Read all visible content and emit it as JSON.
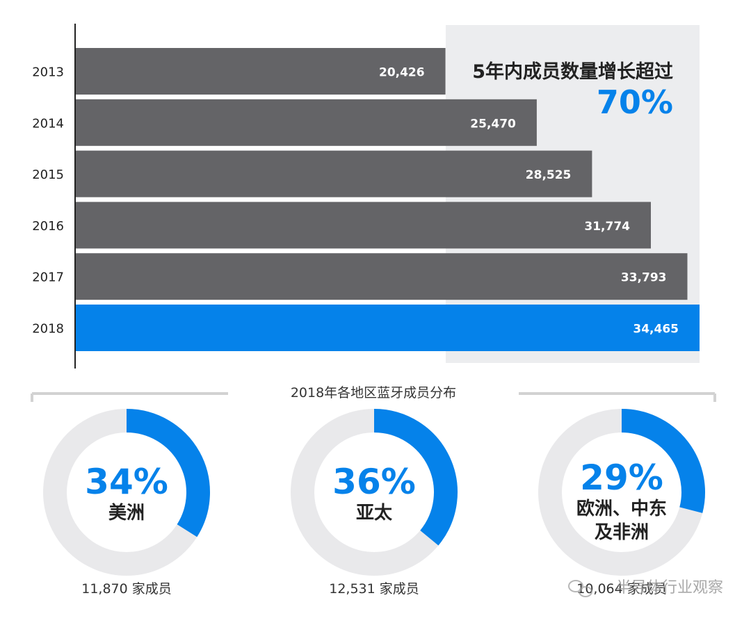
{
  "chart_data": [
    {
      "type": "bar",
      "orientation": "horizontal",
      "categories": [
        "2013",
        "2014",
        "2015",
        "2016",
        "2017",
        "2018"
      ],
      "values": [
        20426,
        25470,
        28525,
        31774,
        33793,
        34465
      ],
      "value_labels": [
        "20,426",
        "25,470",
        "28,525",
        "31,774",
        "33,793",
        "34,465"
      ],
      "highlight_category": "2018",
      "xlim": [
        0,
        34465
      ],
      "grid": false,
      "annotation": {
        "text": "5年内成员数量增长超过",
        "value": "70%"
      }
    },
    {
      "type": "pie",
      "style": "donut",
      "title": "2018年各地区蓝牙成员分布",
      "slices": [
        {
          "percent_label": "34%",
          "value": 34,
          "region_lines": [
            "美洲"
          ],
          "members_label": "11,870 家成员"
        },
        {
          "percent_label": "36%",
          "value": 36,
          "region_lines": [
            "亚太"
          ],
          "members_label": "12,531 家成员"
        },
        {
          "percent_label": "29%",
          "value": 29,
          "region_lines": [
            "欧洲、中东",
            "及非洲"
          ],
          "members_label": "10,064 家成员"
        }
      ]
    }
  ],
  "watermark": "半导体行业观察",
  "colors": {
    "bar": "#646467",
    "bar_highlight": "#0582ea",
    "accent": "#0582ea",
    "panel": "#ecedef",
    "ring_track": "#e9e9eb",
    "bracket": "#d2d2d2",
    "text_dark": "#222222",
    "axis": "#222222"
  }
}
